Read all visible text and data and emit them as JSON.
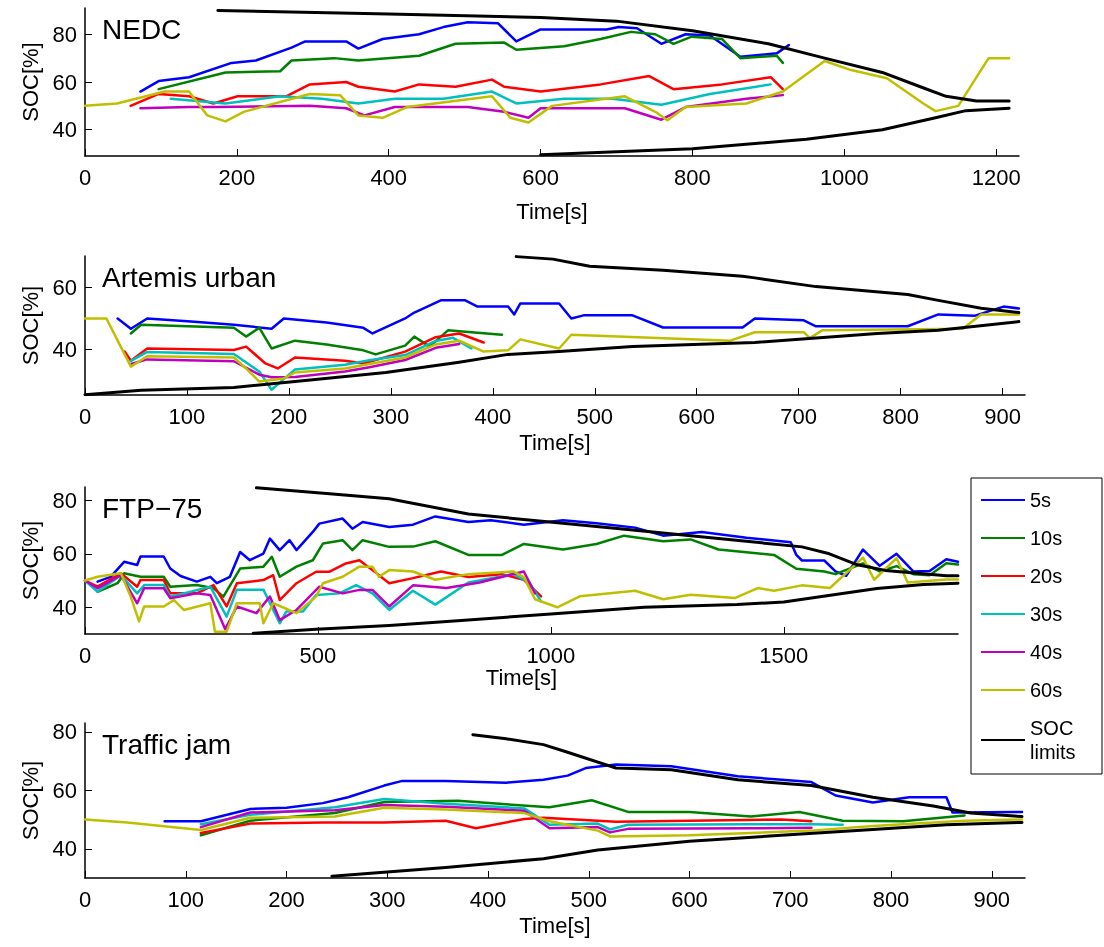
{
  "chart_data": [
    {
      "type": "line",
      "title": "NEDC",
      "xlabel": "Time[s]",
      "ylabel": "SOC[%]",
      "xlim": [
        0,
        1230
      ],
      "xticks": [
        0,
        200,
        400,
        600,
        800,
        1000,
        1200
      ],
      "ylim": [
        29,
        91
      ],
      "yticks": [
        40,
        60,
        80
      ],
      "series": [
        {
          "color": "#0000ff",
          "x": [
            73,
            97,
            137,
            193,
            225,
            272,
            290,
            344,
            360,
            392,
            440,
            472,
            504,
            544,
            568,
            600,
            687,
            703,
            727,
            759,
            791,
            823,
            863,
            911,
            927
          ],
          "values": [
            56,
            60.4,
            62,
            68,
            69,
            74.4,
            77,
            77,
            74,
            78,
            80,
            83,
            85,
            84.6,
            77,
            82,
            82,
            83,
            82.5,
            76,
            80,
            79.5,
            70.6,
            72,
            75.5
          ]
        },
        {
          "color": "#008000",
          "x": [
            97,
            185,
            257,
            272,
            328,
            360,
            440,
            488,
            552,
            568,
            631,
            679,
            719,
            751,
            775,
            799,
            839,
            863,
            911,
            919
          ],
          "values": [
            57,
            64,
            64.5,
            69,
            70,
            69,
            71,
            76,
            76.5,
            73.5,
            75,
            78,
            81,
            80,
            76,
            79,
            78,
            70,
            71,
            68
          ]
        },
        {
          "color": "#ff0000",
          "x": [
            60,
            97,
            137,
            169,
            201,
            265,
            296,
            344,
            360,
            408,
            440,
            488,
            536,
            552,
            600,
            679,
            743,
            775,
            839,
            903,
            919
          ],
          "values": [
            50,
            55,
            54,
            51,
            54,
            54,
            59,
            60,
            58,
            56,
            59,
            58,
            61,
            58,
            56,
            59,
            62.5,
            57,
            59,
            62,
            57
          ]
        },
        {
          "color": "#00bfbf",
          "x": [
            113,
            185,
            257,
            312,
            360,
            408,
            472,
            536,
            568,
            631,
            695,
            759,
            823,
            903
          ],
          "values": [
            53,
            51,
            54,
            53,
            51,
            53,
            53,
            56,
            51,
            53,
            53,
            50.5,
            55,
            59
          ]
        },
        {
          "color": "#bf00bf",
          "x": [
            73,
            137,
            175,
            296,
            344,
            368,
            408,
            504,
            552,
            584,
            600,
            711,
            759,
            791,
            871,
            919
          ],
          "values": [
            49,
            49.5,
            49.5,
            50,
            49,
            46,
            49.5,
            49.5,
            47.5,
            45,
            49,
            49,
            44.2,
            49.5,
            53,
            54.5
          ]
        },
        {
          "color": "#bfbf00",
          "x": [
            0,
            42,
            105,
            137,
            161,
            185,
            209,
            296,
            336,
            360,
            392,
            424,
            536,
            560,
            584,
            615,
            711,
            751,
            767,
            791,
            871,
            919,
            974,
            1009,
            1056,
            1104,
            1120,
            1150,
            1190,
            1217
          ],
          "values": [
            50,
            51,
            56,
            56,
            46,
            43.5,
            47.5,
            55,
            54.5,
            46,
            45,
            49.5,
            54,
            45,
            43,
            50,
            54,
            47.5,
            44,
            49.5,
            51,
            56,
            68.8,
            65,
            61.6,
            51,
            47.8,
            50,
            70,
            70
          ]
        },
        {
          "color": "#000000",
          "x": [
            175,
            400,
            600,
            700,
            800,
            900,
            974,
            1050,
            1100,
            1134,
            1174,
            1217
          ],
          "values": [
            90,
            88.5,
            87,
            85.5,
            81.5,
            76,
            70,
            64,
            58,
            54,
            52,
            52
          ]
        },
        {
          "color": "#000000",
          "x": [
            600,
            800,
            950,
            1050,
            1120,
            1160,
            1217
          ],
          "values": [
            29.5,
            32,
            36,
            40,
            45,
            48,
            49
          ]
        }
      ]
    },
    {
      "type": "line",
      "title": "Artemis urban",
      "xlabel": "Time[s]",
      "ylabel": "SOC[%]",
      "xlim": [
        0,
        922
      ],
      "xticks": [
        0,
        100,
        200,
        300,
        400,
        500,
        600,
        700,
        800,
        900
      ],
      "ylim": [
        25.5,
        70
      ],
      "yticks": [
        40,
        60
      ],
      "series": [
        {
          "color": "#0000ff",
          "x": [
            32,
            45,
            61,
            104,
            146,
            183,
            195,
            237,
            273,
            282,
            314,
            323,
            349,
            373,
            385,
            415,
            421,
            427,
            465,
            477,
            489,
            537,
            567,
            645,
            657,
            705,
            717,
            807,
            837,
            873,
            901,
            916
          ],
          "values": [
            50,
            46.7,
            50,
            49,
            48,
            46.7,
            50,
            48.7,
            47,
            45.2,
            50,
            51.9,
            55.8,
            55.8,
            53.8,
            53.8,
            51.3,
            54.8,
            54.8,
            50,
            51,
            51,
            47.1,
            47.1,
            50,
            49.4,
            47.5,
            47.5,
            51.3,
            50.9,
            53.8,
            53.2
          ]
        },
        {
          "color": "#008000",
          "x": [
            45,
            55,
            146,
            158,
            171,
            183,
            206,
            237,
            273,
            285,
            314,
            323,
            338,
            356,
            379,
            409
          ],
          "values": [
            45.2,
            48,
            47,
            44.2,
            47,
            40.4,
            42.9,
            41.7,
            39.8,
            38.5,
            41.3,
            44.2,
            41,
            46.2,
            45.6,
            44.8
          ]
        },
        {
          "color": "#ff0000",
          "x": [
            39,
            45,
            61,
            146,
            158,
            177,
            189,
            206,
            255,
            273,
            314,
            344,
            367,
            391
          ],
          "values": [
            39.4,
            36.5,
            40.4,
            39.9,
            41,
            35.6,
            34,
            37.5,
            36.5,
            35.6,
            39.4,
            44,
            45.2,
            42.3
          ]
        },
        {
          "color": "#00bfbf",
          "x": [
            45,
            61,
            146,
            171,
            183,
            206,
            255,
            279,
            314,
            344,
            361,
            379
          ],
          "values": [
            36.4,
            39.3,
            38.6,
            33,
            27.2,
            33.7,
            35.2,
            36.6,
            38.3,
            42.8,
            43.8,
            40.4
          ]
        },
        {
          "color": "#bf00bf",
          "x": [
            45,
            61,
            146,
            171,
            183,
            206,
            255,
            279,
            314,
            344,
            367
          ],
          "values": [
            35.4,
            36.9,
            36.3,
            32,
            31.2,
            31.3,
            33,
            34.4,
            36.7,
            40.6,
            41.8
          ]
        },
        {
          "color": "#bfbf00",
          "x": [
            0,
            21,
            45,
            61,
            146,
            158,
            171,
            195,
            206,
            255,
            314,
            344,
            367,
            391,
            415,
            427,
            465,
            477,
            633,
            657,
            705,
            711,
            723,
            861,
            879,
            916
          ],
          "values": [
            50,
            50,
            34.6,
            37.9,
            37.5,
            34,
            29.8,
            30.8,
            32.7,
            34,
            37.5,
            41.7,
            42.9,
            39.4,
            39.8,
            43.3,
            40.4,
            44.8,
            42.9,
            45.6,
            45.6,
            43.7,
            46.2,
            46.7,
            51.3,
            51.3
          ]
        },
        {
          "color": "#000000",
          "x": [
            423,
            459,
            495,
            567,
            645,
            657,
            717,
            807,
            837,
            879,
            916
          ],
          "values": [
            69.8,
            69,
            66.7,
            65.4,
            63.5,
            63,
            60.2,
            57.7,
            55.8,
            53.3,
            51.9
          ]
        },
        {
          "color": "#000000",
          "x": [
            0,
            55,
            146,
            206,
            295,
            367,
            415,
            465,
            537,
            657,
            777,
            837,
            916
          ],
          "values": [
            25.6,
            27,
            27.9,
            29.8,
            32.7,
            36,
            38.5,
            39.4,
            41,
            42.3,
            45.2,
            46.2,
            49
          ]
        }
      ]
    },
    {
      "type": "line",
      "title": "FTP−75",
      "xlabel": "Time[s]",
      "ylabel": "SOC[%]",
      "xlim": [
        0,
        1874
      ],
      "xticks": [
        0,
        500,
        1000,
        1500
      ],
      "ylim": [
        30,
        85
      ],
      "yticks": [
        40,
        60,
        80
      ],
      "legend": "right",
      "series": [
        {
          "name": "5s",
          "color": "#0000ff",
          "x": [
            27,
            55,
            84,
            112,
            119,
            169,
            183,
            205,
            240,
            269,
            283,
            311,
            333,
            354,
            383,
            397,
            418,
            439,
            454,
            489,
            503,
            553,
            574,
            596,
            653,
            704,
            752,
            823,
            871,
            942,
            1026,
            1098,
            1181,
            1241,
            1324,
            1420,
            1479,
            1515,
            1527,
            1539,
            1587,
            1611,
            1634,
            1670,
            1706,
            1742,
            1778,
            1813,
            1849,
            1874
          ],
          "values": [
            49.6,
            51.4,
            57,
            55.8,
            59,
            59,
            54.5,
            51.7,
            49.6,
            51.4,
            49,
            51.4,
            60.7,
            57.6,
            60.1,
            65.7,
            61.4,
            65.1,
            61.4,
            68.2,
            71.3,
            73.2,
            69.4,
            71.9,
            70,
            70.9,
            74,
            71.9,
            72.6,
            70.9,
            72.6,
            71.4,
            69.8,
            66.8,
            68.2,
            66,
            65,
            64.3,
            59.6,
            57.5,
            57.5,
            53.4,
            51.8,
            61.6,
            55.5,
            60,
            53.4,
            53.6,
            58,
            57
          ]
        },
        {
          "name": "10s",
          "color": "#008000",
          "x": [
            27,
            70,
            84,
            119,
            169,
            183,
            240,
            276,
            297,
            333,
            383,
            401,
            418,
            454,
            489,
            511,
            553,
            574,
            596,
            653,
            704,
            752,
            823,
            895,
            942,
            1026,
            1098,
            1157,
            1241,
            1300,
            1360,
            1479,
            1527,
            1587,
            1611,
            1670,
            1706,
            1742,
            1778,
            1813,
            1849,
            1874
          ],
          "values": [
            45.8,
            49,
            52.7,
            51.4,
            51.4,
            47.7,
            48.3,
            47.1,
            44,
            54.5,
            55.2,
            58.9,
            51.4,
            55.2,
            57.6,
            63.9,
            65.1,
            61.4,
            65.1,
            62.6,
            62.7,
            64.7,
            59.6,
            59.6,
            63.7,
            61.6,
            63.7,
            66.8,
            64.7,
            65.4,
            61.6,
            59.6,
            54.4,
            53.4,
            52.4,
            56.4,
            53.4,
            55.4,
            52.4,
            52,
            56.5,
            56
          ]
        },
        {
          "name": "20s",
          "color": "#ff0000",
          "x": [
            0,
            27,
            77,
            112,
            119,
            169,
            183,
            240,
            276,
            304,
            326,
            383,
            404,
            418,
            454,
            496,
            525,
            560,
            589,
            617,
            653,
            704,
            764,
            823,
            895,
            942,
            979
          ],
          "values": [
            50,
            47.7,
            52.7,
            47.7,
            50.2,
            50.2,
            45.2,
            45.2,
            48.3,
            40.3,
            49,
            50.2,
            52,
            42.7,
            49,
            53.3,
            53.3,
            56.4,
            57.6,
            53.9,
            49,
            50.9,
            53.4,
            51.3,
            52.4,
            50.3,
            44.1
          ]
        },
        {
          "name": "30s",
          "color": "#00bfbf",
          "x": [
            0,
            27,
            77,
            112,
            127,
            169,
            183,
            212,
            269,
            304,
            326,
            383,
            397,
            418,
            432,
            468,
            496,
            546,
            582,
            617,
            653,
            704,
            752,
            823,
            919,
            954,
            979
          ],
          "values": [
            50,
            45.8,
            52,
            45.2,
            48.3,
            48.3,
            44,
            45.2,
            47.7,
            36.5,
            46.6,
            46.6,
            41.5,
            34,
            38.4,
            38.4,
            44.6,
            45.2,
            48.3,
            45.2,
            39,
            46.2,
            41,
            49.3,
            52.4,
            49.3,
            42.1
          ]
        },
        {
          "name": "40s",
          "color": "#bf00bf",
          "x": [
            0,
            27,
            77,
            112,
            127,
            169,
            183,
            240,
            269,
            301,
            326,
            368,
            397,
            418,
            454,
            503,
            553,
            589,
            617,
            653,
            704,
            776,
            847,
            942,
            966
          ],
          "values": [
            50,
            47.1,
            52,
            41.5,
            47.1,
            47.1,
            43.4,
            45.2,
            44.6,
            31.8,
            40.3,
            37.8,
            44,
            35.2,
            39,
            47.7,
            45.2,
            46.5,
            46.5,
            40.3,
            48.2,
            47.2,
            49.3,
            53.4,
            45.2
          ]
        },
        {
          "name": "60s",
          "color": "#bfbf00",
          "x": [
            0,
            27,
            77,
            98,
            116,
            127,
            169,
            191,
            212,
            269,
            279,
            304,
            326,
            375,
            383,
            404,
            454,
            496,
            511,
            553,
            589,
            617,
            631,
            653,
            704,
            752,
            823,
            919,
            942,
            966,
            1014,
            1062,
            1181,
            1241,
            1300,
            1396,
            1444,
            1479,
            1539,
            1599,
            1670,
            1694,
            1742,
            1766,
            1849,
            1874
          ],
          "values": [
            50,
            51.4,
            52.7,
            44,
            34.7,
            40.3,
            40.3,
            42.7,
            39,
            41.5,
            30.8,
            30.8,
            41.5,
            41.5,
            34,
            41.5,
            37.8,
            44,
            49,
            51.4,
            55.2,
            55.2,
            51.4,
            53.9,
            53.4,
            50.3,
            52.4,
            53.4,
            51.3,
            43,
            40,
            44.1,
            46.2,
            43,
            44.7,
            43.5,
            47.2,
            46.2,
            48.2,
            47.2,
            58.6,
            50.3,
            58.4,
            49.3,
            50.4,
            50.4
          ]
        },
        {
          "name": "SOC limits",
          "color": "#000000",
          "x": [
            368,
            525,
            653,
            823,
            1026,
            1181,
            1360,
            1539,
            1598,
            1658,
            1718,
            1849,
            1874
          ],
          "values": [
            84.7,
            82.5,
            80.6,
            74.9,
            71.4,
            68.8,
            65.7,
            62.6,
            60,
            55.9,
            53.8,
            51.8,
            51.8
          ]
        },
        {
          "color": "#000000",
          "x": [
            361,
            496,
            653,
            800,
            1000,
            1200,
            1400,
            1500,
            1600,
            1700,
            1800,
            1874
          ],
          "values": [
            30.3,
            31.8,
            33.2,
            35,
            37.5,
            40,
            41,
            42,
            44.5,
            47,
            48.5,
            49
          ]
        }
      ]
    },
    {
      "type": "line",
      "title": "Traffic jam",
      "xlabel": "Time[s]",
      "ylabel": "SOC[%]",
      "xlim": [
        0,
        933
      ],
      "xticks": [
        0,
        100,
        200,
        300,
        400,
        500,
        600,
        700,
        800,
        900
      ],
      "ylim": [
        30,
        83
      ],
      "yticks": [
        40,
        60,
        80
      ],
      "series": [
        {
          "color": "#0000ff",
          "x": [
            79,
            115,
            127,
            164,
            200,
            236,
            261,
            297,
            315,
            358,
            418,
            455,
            479,
            497,
            527,
            582,
            648,
            721,
            745,
            782,
            818,
            855,
            861,
            930
          ],
          "values": [
            49.4,
            49.4,
            50.4,
            53.6,
            54,
            55.6,
            57.6,
            61.6,
            63.2,
            63.2,
            62.6,
            63.6,
            65,
            67.6,
            68.8,
            68.2,
            64.8,
            62.8,
            58.2,
            55.8,
            57.6,
            57.6,
            52.4,
            52.6
          ]
        },
        {
          "color": "#008000",
          "x": [
            115,
            164,
            248,
            297,
            370,
            418,
            461,
            503,
            539,
            600,
            661,
            709,
            752,
            812,
            873
          ],
          "values": [
            44.6,
            49.6,
            52.2,
            56,
            56.4,
            55.2,
            54.2,
            56.6,
            52.6,
            52.6,
            51,
            52.6,
            49.6,
            49.4,
            51.4
          ]
        },
        {
          "color": "#ff0000",
          "x": [
            115,
            164,
            236,
            297,
            358,
            388,
            436,
            455,
            509,
            527,
            600,
            691,
            721
          ],
          "values": [
            45.4,
            48.6,
            49,
            49,
            49.6,
            47,
            50.2,
            50.6,
            49.6,
            49.2,
            49.6,
            50,
            49.4
          ]
        },
        {
          "color": "#00bfbf",
          "x": [
            115,
            164,
            248,
            297,
            358,
            436,
            461,
            509,
            521,
            539,
            661,
            721,
            752
          ],
          "values": [
            48.4,
            51.6,
            54.2,
            57,
            55.4,
            53.8,
            48.2,
            48.6,
            46.6,
            48.2,
            48.4,
            48.4,
            48.2
          ]
        },
        {
          "color": "#bf00bf",
          "x": [
            115,
            164,
            248,
            297,
            358,
            436,
            461,
            509,
            521,
            539,
            661,
            721
          ],
          "values": [
            47.4,
            52.4,
            53.2,
            55,
            54.4,
            53,
            47,
            47.4,
            45.6,
            46.8,
            47,
            47.2
          ]
        },
        {
          "color": "#bfbf00",
          "x": [
            0,
            42,
            115,
            164,
            248,
            297,
            358,
            436,
            461,
            509,
            521,
            600,
            721,
            782,
            873,
            930
          ],
          "values": [
            50,
            49,
            46.4,
            50.6,
            51,
            54,
            53.4,
            52.2,
            49.4,
            46.2,
            44.2,
            44.6,
            46.2,
            47.8,
            49.6,
            50
          ]
        },
        {
          "color": "#000000",
          "x": [
            385,
            418,
            455,
            479,
            527,
            582,
            648,
            721,
            782,
            842,
            879,
            930
          ],
          "values": [
            79,
            77.6,
            75.6,
            73,
            67.6,
            67,
            63.6,
            61.6,
            57.6,
            54.6,
            52.2,
            51
          ]
        },
        {
          "color": "#000000",
          "x": [
            245,
            358,
            455,
            509,
            600,
            691,
            782,
            855,
            930
          ],
          "values": [
            30.6,
            33.6,
            36.6,
            39.6,
            42.6,
            44.6,
            46.6,
            48.2,
            49
          ]
        }
      ]
    }
  ]
}
